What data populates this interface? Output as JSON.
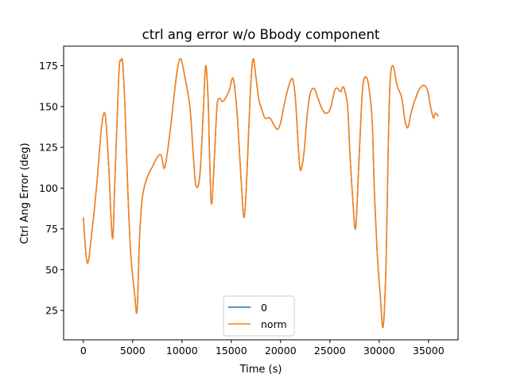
{
  "chart_data": {
    "type": "line",
    "title": "ctrl ang error w/o Bbody component",
    "xlabel": "Time (s)",
    "ylabel": "Ctrl Ang Error (deg)",
    "xlim": [
      -2000,
      38000
    ],
    "ylim": [
      7,
      187
    ],
    "xticks": [
      0,
      5000,
      10000,
      15000,
      20000,
      25000,
      30000,
      35000
    ],
    "xtick_labels": [
      "0",
      "5000",
      "10000",
      "15000",
      "20000",
      "25000",
      "30000",
      "35000"
    ],
    "yticks": [
      25,
      50,
      75,
      100,
      125,
      150,
      175
    ],
    "ytick_labels": [
      "25",
      "50",
      "75",
      "100",
      "125",
      "150",
      "175"
    ],
    "grid": false,
    "legend_position": "lower center",
    "series": [
      {
        "name": "0",
        "color": "#1f77b4",
        "x": [
          0,
          400,
          900,
          1400,
          1800,
          2100,
          2300,
          2600,
          2950,
          3200,
          3600,
          3800,
          4000,
          4250,
          4500,
          4800,
          5200,
          5450,
          5700,
          6000,
          6500,
          7000,
          7500,
          7900,
          8200,
          8500,
          8900,
          9300,
          9600,
          9900,
          10300,
          10800,
          11100,
          11400,
          11800,
          12150,
          12400,
          12650,
          12800,
          13000,
          13300,
          13550,
          13800,
          14100,
          14400,
          14800,
          15200,
          15600,
          16000,
          16300,
          16600,
          16900,
          17200,
          17500,
          17800,
          18000,
          18400,
          18900,
          19400,
          19700,
          20000,
          20400,
          20800,
          21200,
          21500,
          21800,
          22000,
          22300,
          22500,
          22700,
          23000,
          23400,
          23800,
          24100,
          24500,
          25000,
          25500,
          25800,
          26100,
          26300,
          26500,
          26800,
          27000,
          27300,
          27600,
          27900,
          28200,
          28400,
          28700,
          29000,
          29300,
          29500,
          29800,
          30100,
          30400,
          30700,
          30900,
          31100,
          31400,
          31800,
          32000,
          32300,
          32600,
          32900,
          33200,
          33500,
          33700,
          34000,
          34500,
          34900,
          35200,
          35500,
          35700,
          36000
        ],
        "values": [
          82,
          54,
          75,
          105,
          135,
          146,
          140,
          110,
          69,
          105,
          170,
          178,
          176,
          145,
          100,
          60,
          35,
          25,
          70,
          95,
          107,
          113,
          119,
          120,
          112,
          121,
          140,
          162,
          175,
          179,
          168,
          150,
          125,
          102,
          107,
          145,
          175,
          155,
          120,
          90,
          120,
          150,
          155,
          153,
          155,
          160,
          167,
          145,
          105,
          82,
          110,
          155,
          179,
          168,
          154,
          150,
          143,
          143,
          138,
          136,
          140,
          152,
          162,
          167,
          155,
          125,
          111,
          118,
          130,
          145,
          158,
          161,
          155,
          150,
          146,
          148,
          160,
          161,
          159,
          162,
          160,
          150,
          125,
          95,
          75,
          110,
          150,
          165,
          168,
          160,
          140,
          100,
          60,
          35,
          15,
          55,
          120,
          165,
          175,
          163,
          160,
          155,
          142,
          137,
          145,
          152,
          155,
          160,
          163,
          160,
          150,
          143,
          146,
          144
        ]
      },
      {
        "name": "norm",
        "color": "#ff7f0e",
        "x": [
          0,
          400,
          900,
          1400,
          1800,
          2100,
          2300,
          2600,
          2950,
          3200,
          3600,
          3800,
          4000,
          4250,
          4500,
          4800,
          5200,
          5450,
          5700,
          6000,
          6500,
          7000,
          7500,
          7900,
          8200,
          8500,
          8900,
          9300,
          9600,
          9900,
          10300,
          10800,
          11100,
          11400,
          11800,
          12150,
          12400,
          12650,
          12800,
          13000,
          13300,
          13550,
          13800,
          14100,
          14400,
          14800,
          15200,
          15600,
          16000,
          16300,
          16600,
          16900,
          17200,
          17500,
          17800,
          18000,
          18400,
          18900,
          19400,
          19700,
          20000,
          20400,
          20800,
          21200,
          21500,
          21800,
          22000,
          22300,
          22500,
          22700,
          23000,
          23400,
          23800,
          24100,
          24500,
          25000,
          25500,
          25800,
          26100,
          26300,
          26500,
          26800,
          27000,
          27300,
          27600,
          27900,
          28200,
          28400,
          28700,
          29000,
          29300,
          29500,
          29800,
          30100,
          30400,
          30700,
          30900,
          31100,
          31400,
          31800,
          32000,
          32300,
          32600,
          32900,
          33200,
          33500,
          33700,
          34000,
          34500,
          34900,
          35200,
          35500,
          35700,
          36000
        ],
        "values": [
          82,
          54,
          75,
          105,
          135,
          146,
          140,
          110,
          69,
          105,
          170,
          178,
          176,
          145,
          100,
          60,
          35,
          25,
          70,
          95,
          107,
          113,
          119,
          120,
          112,
          121,
          140,
          162,
          175,
          179,
          168,
          150,
          125,
          102,
          107,
          145,
          175,
          155,
          120,
          90,
          120,
          150,
          155,
          153,
          155,
          160,
          167,
          145,
          105,
          82,
          110,
          155,
          179,
          168,
          154,
          150,
          143,
          143,
          138,
          136,
          140,
          152,
          162,
          167,
          155,
          125,
          111,
          118,
          130,
          145,
          158,
          161,
          155,
          150,
          146,
          148,
          160,
          161,
          159,
          162,
          160,
          150,
          125,
          95,
          75,
          110,
          150,
          165,
          168,
          160,
          140,
          100,
          60,
          35,
          15,
          55,
          120,
          165,
          175,
          163,
          160,
          155,
          142,
          137,
          145,
          152,
          155,
          160,
          163,
          160,
          150,
          143,
          146,
          144
        ]
      }
    ]
  }
}
